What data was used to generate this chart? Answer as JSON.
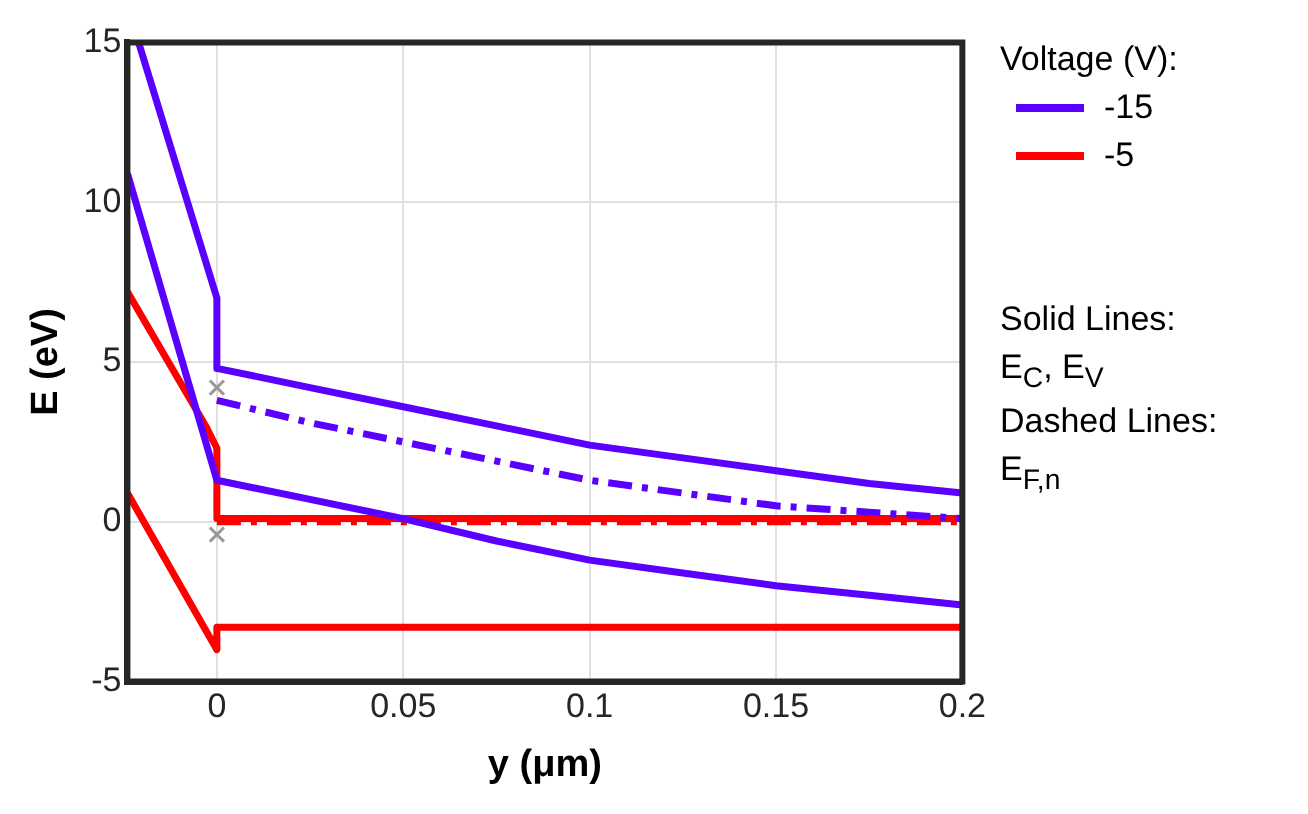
{
  "chart_data": {
    "type": "line",
    "xlabel": "y (μm)",
    "ylabel": "E (eV)",
    "legend_title": "Voltage (V):",
    "xlim": [
      -0.024,
      0.2
    ],
    "xticks": [
      0,
      0.05,
      0.1,
      0.15,
      0.2
    ],
    "ylim": [
      -5,
      15
    ],
    "yticks": [
      -5,
      0,
      5,
      10,
      15
    ],
    "grid": true,
    "legend": "right",
    "marker": "none",
    "series": [
      {
        "name": "-15",
        "color": "#5a00ff",
        "line_style": "solid",
        "x": [
          -0.021,
          0,
          0,
          0.025,
          0.05,
          0.075,
          0.1,
          0.125,
          0.15,
          0.175,
          0.2
        ],
        "values": [
          15,
          7.0,
          4.8,
          4.2,
          3.6,
          3.0,
          2.4,
          2.0,
          1.6,
          1.2,
          0.9
        ]
      },
      {
        "color": "#5a00ff",
        "line_style": "solid",
        "x": [
          -0.024,
          0,
          0.025,
          0.05,
          0.075,
          0.1,
          0.125,
          0.15,
          0.175,
          0.2
        ],
        "values": [
          10.9,
          1.3,
          0.7,
          0.1,
          -0.6,
          -1.2,
          -1.6,
          -2.0,
          -2.3,
          -2.6
        ]
      },
      {
        "color": "#5a00ff",
        "line_style": "dashed",
        "x": [
          0,
          0.025,
          0.05,
          0.075,
          0.1,
          0.125,
          0.15,
          0.175,
          0.2
        ],
        "values": [
          3.8,
          3.1,
          2.5,
          1.9,
          1.3,
          0.9,
          0.5,
          0.3,
          0.1
        ]
      },
      {
        "name": "-5",
        "color": "#ff0000",
        "line_style": "solid",
        "x": [
          -0.024,
          -0.003,
          0,
          0,
          0.2
        ],
        "values": [
          7.2,
          3.0,
          2.3,
          0.1,
          0.1
        ]
      },
      {
        "color": "#ff0000",
        "line_style": "solid",
        "x": [
          -0.024,
          0,
          0,
          0.2
        ],
        "values": [
          0.9,
          -4.0,
          -3.3,
          -3.3
        ]
      },
      {
        "color": "#ff0000",
        "line_style": "dashed",
        "x": [
          0,
          0.2
        ],
        "values": [
          0.0,
          0.0
        ]
      },
      {
        "type": "scatter",
        "color": "#999999",
        "marker": "cross",
        "x": [
          0,
          0
        ],
        "values": [
          4.2,
          -0.4
        ]
      }
    ],
    "annotations": [
      "Solid Lines:",
      "E$_{C}$, E$_{V}$",
      "Dashed Lines:",
      "E$_{F,n}$"
    ]
  }
}
